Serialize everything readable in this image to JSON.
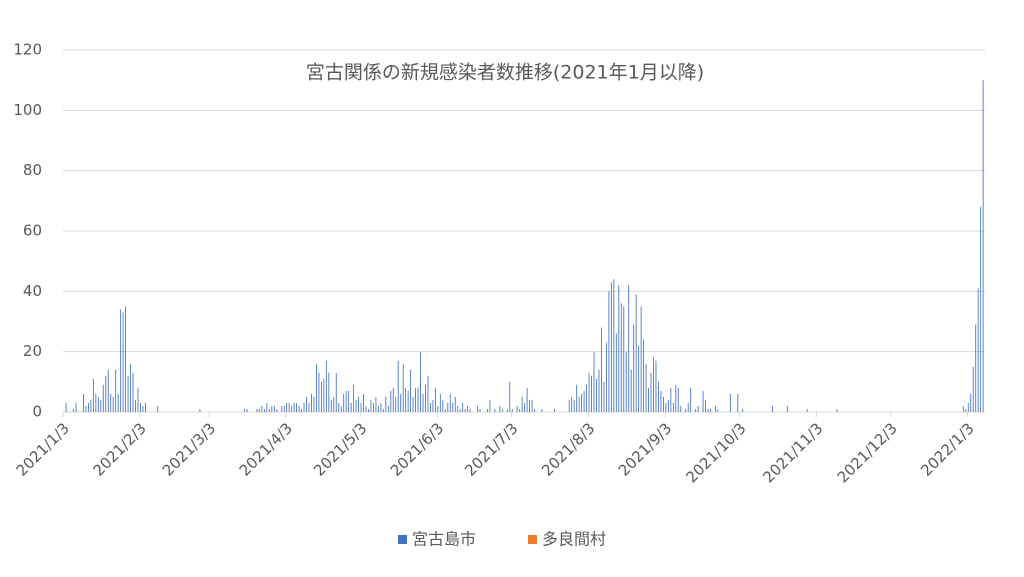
{
  "chart_data": {
    "type": "bar",
    "title": "宮古関係の新規感染者数推移(2021年1月以降)",
    "categories": [
      "2021/1/3",
      null,
      null,
      null,
      null,
      null,
      null,
      null,
      null,
      null,
      null,
      null,
      null,
      null,
      null,
      null,
      null,
      null,
      null,
      null,
      null,
      null,
      null,
      null,
      null,
      null,
      null,
      null,
      null,
      null,
      null,
      "2021/2/3",
      null,
      null,
      null,
      null,
      null,
      null,
      null,
      null,
      null,
      null,
      null,
      null,
      null,
      null,
      null,
      null,
      null,
      null,
      null,
      null,
      null,
      null,
      null,
      null,
      null,
      null,
      null,
      "2021/3/3",
      null,
      null,
      null,
      null,
      null,
      null,
      null,
      null,
      null,
      null,
      null,
      null,
      null,
      null,
      null,
      null,
      null,
      null,
      null,
      null,
      null,
      null,
      null,
      null,
      null,
      null,
      null,
      null,
      null,
      null,
      "2021/4/3",
      null,
      null,
      null,
      null,
      null,
      null,
      null,
      null,
      null,
      null,
      null,
      null,
      null,
      null,
      null,
      null,
      null,
      null,
      null,
      null,
      null,
      null,
      null,
      null,
      null,
      null,
      null,
      null,
      null,
      "2021/5/3",
      null,
      null,
      null,
      null,
      null,
      null,
      null,
      null,
      null,
      null,
      null,
      null,
      null,
      null,
      null,
      null,
      null,
      null,
      null,
      null,
      null,
      null,
      null,
      null,
      null,
      null,
      null,
      null,
      null,
      null,
      "2021/6/3",
      null,
      null,
      null,
      null,
      null,
      null,
      null,
      null,
      null,
      null,
      null,
      null,
      null,
      null,
      null,
      null,
      null,
      null,
      null,
      null,
      null,
      null,
      null,
      null,
      null,
      null,
      null,
      null,
      null,
      "2021/7/3",
      null,
      null,
      null,
      null,
      null,
      null,
      null,
      null,
      null,
      null,
      null,
      null,
      null,
      null,
      null,
      null,
      null,
      null,
      null,
      null,
      null,
      null,
      null,
      null,
      null,
      null,
      null,
      null,
      null,
      null,
      "2021/8/3",
      null,
      null,
      null,
      null,
      null,
      null,
      null,
      null,
      null,
      null,
      null,
      null,
      null,
      null,
      null,
      null,
      null,
      null,
      null,
      null,
      null,
      null,
      null,
      null,
      null,
      null,
      null,
      null,
      null,
      null,
      "2021/9/3",
      null,
      null,
      null,
      null,
      null,
      null,
      null,
      null,
      null,
      null,
      null,
      null,
      null,
      null,
      null,
      null,
      null,
      null,
      null,
      null,
      null,
      null,
      null,
      null,
      null,
      null,
      null,
      null,
      null,
      "2021/10/3",
      null,
      null,
      null,
      null,
      null,
      null,
      null,
      null,
      null,
      null,
      null,
      null,
      null,
      null,
      null,
      null,
      null,
      null,
      null,
      null,
      null,
      null,
      null,
      null,
      null,
      null,
      null,
      null,
      null,
      null,
      "2021/11/3",
      null,
      null,
      null,
      null,
      null,
      null,
      null,
      null,
      null,
      null,
      null,
      null,
      null,
      null,
      null,
      null,
      null,
      null,
      null,
      null,
      null,
      null,
      null,
      null,
      null,
      null,
      null,
      null,
      null,
      "2021/12/3",
      null,
      null,
      null,
      null,
      null,
      null,
      null,
      null,
      null,
      null,
      null,
      null,
      null,
      null,
      null,
      null,
      null,
      null,
      null,
      null,
      null,
      null,
      null,
      null,
      null,
      null,
      null,
      null,
      null,
      null,
      "2022/1/3",
      null,
      null,
      null,
      null,
      null,
      null
    ],
    "series": [
      {
        "name": "宮古島市",
        "color": "#4472c4",
        "values": [
          0,
          3,
          0,
          0,
          1,
          3,
          0,
          0,
          6,
          2,
          3,
          4,
          11,
          6,
          5,
          4,
          9,
          12,
          14,
          6,
          5,
          14,
          6,
          34,
          33,
          35,
          12,
          16,
          13,
          4,
          8,
          3,
          2,
          3,
          0,
          0,
          0,
          0,
          2,
          0,
          0,
          0,
          0,
          0,
          0,
          0,
          0,
          0,
          0,
          0,
          0,
          0,
          0,
          0,
          0,
          1,
          0,
          0,
          0,
          0,
          0,
          0,
          0,
          0,
          0,
          0,
          0,
          0,
          0,
          0,
          0,
          0,
          0,
          1,
          1,
          0,
          0,
          0,
          1,
          1,
          2,
          1,
          3,
          1,
          2,
          2,
          1,
          0,
          2,
          2,
          3,
          3,
          2,
          3,
          3,
          2,
          1,
          3,
          5,
          3,
          6,
          5,
          16,
          13,
          10,
          11,
          17,
          13,
          4,
          5,
          13,
          3,
          2,
          6,
          7,
          7,
          3,
          9,
          4,
          5,
          3,
          6,
          2,
          1,
          4,
          3,
          5,
          2,
          3,
          1,
          5,
          2,
          7,
          8,
          5,
          17,
          6,
          16,
          8,
          7,
          14,
          5,
          8,
          8,
          20,
          6,
          9,
          12,
          3,
          4,
          8,
          2,
          6,
          4,
          1,
          3,
          6,
          3,
          5,
          2,
          1,
          3,
          1,
          2,
          1,
          0,
          0,
          2,
          1,
          0,
          0,
          1,
          4,
          0,
          1,
          0,
          2,
          1,
          0,
          1,
          10,
          1,
          0,
          2,
          1,
          5,
          3,
          8,
          4,
          4,
          1,
          0,
          0,
          1,
          0,
          0,
          0,
          0,
          1,
          0,
          0,
          0,
          0,
          0,
          4,
          5,
          4,
          9,
          5,
          6,
          7,
          9,
          13,
          12,
          20,
          11,
          14,
          28,
          10,
          23,
          40,
          43,
          44,
          26,
          42,
          36,
          35,
          20,
          42,
          14,
          29,
          39,
          22,
          35,
          24,
          16,
          8,
          13,
          18,
          17,
          10,
          7,
          5,
          3,
          4,
          8,
          3,
          9,
          8,
          2,
          0,
          1,
          3,
          8,
          0,
          1,
          2,
          0,
          7,
          4,
          1,
          1,
          0,
          2,
          1,
          0,
          0,
          0,
          0,
          6,
          0,
          0,
          6,
          0,
          1,
          0,
          0,
          0,
          0,
          0,
          0,
          0,
          0,
          0,
          0,
          0,
          2,
          0,
          0,
          0,
          0,
          0,
          2,
          0,
          0,
          0,
          0,
          0,
          0,
          0,
          1,
          0,
          0,
          0,
          0,
          0,
          0,
          0,
          0,
          0,
          0,
          0,
          1,
          0,
          0,
          0,
          0,
          0,
          0,
          0,
          0,
          0,
          0,
          0,
          0,
          0,
          0,
          0,
          0,
          0,
          0,
          0,
          0,
          0,
          0,
          0,
          0,
          0,
          0,
          0,
          0,
          0,
          0,
          0,
          0,
          0,
          0,
          0,
          0,
          0,
          0,
          0,
          0,
          0,
          0,
          0,
          0,
          0,
          0,
          0,
          0,
          0,
          0,
          2,
          1,
          3,
          6,
          15,
          29,
          41,
          68,
          110
        ]
      },
      {
        "name": "多良間村",
        "color": "#ed7d31",
        "values": [
          0,
          0,
          0,
          0,
          0,
          0,
          0,
          0,
          0,
          0,
          0,
          0,
          0,
          0,
          0,
          0,
          0,
          0,
          0,
          0,
          0,
          0,
          0,
          0,
          0,
          0,
          0,
          0,
          0,
          0,
          0,
          0,
          0,
          0,
          0,
          0,
          0,
          0,
          0,
          0,
          0,
          0,
          0,
          0,
          0,
          0,
          0,
          0,
          0,
          0,
          0,
          0,
          0,
          0,
          0,
          0,
          0,
          0,
          0,
          0,
          0,
          0,
          0,
          0,
          0,
          0,
          0,
          0,
          0,
          0,
          0,
          0,
          0,
          0,
          0,
          0,
          0,
          0,
          0,
          0,
          0,
          0,
          0,
          0,
          0,
          0,
          0,
          0,
          0,
          0,
          0,
          0,
          0,
          0,
          0,
          0,
          0,
          0,
          0,
          0,
          0,
          0,
          0,
          0,
          0,
          0,
          0,
          0,
          0,
          0,
          0,
          0,
          0,
          0,
          0,
          0,
          0,
          0,
          0,
          0,
          0,
          0,
          0,
          0,
          0,
          0,
          0,
          0,
          0,
          0,
          0,
          0,
          0,
          0,
          0,
          0,
          0,
          0,
          0,
          0,
          0,
          0,
          0,
          0,
          0,
          0,
          0,
          0,
          0,
          0,
          0,
          0,
          0,
          0,
          0,
          0,
          0,
          0,
          0,
          0,
          0,
          0,
          0,
          0,
          0,
          0,
          0,
          0,
          0,
          0,
          0,
          0,
          0,
          0,
          0,
          0,
          0,
          0,
          0,
          0,
          0,
          0,
          0,
          0,
          0,
          0,
          0,
          0,
          0,
          0,
          0,
          0,
          0,
          0,
          0,
          0,
          0,
          0,
          0,
          0,
          0,
          0,
          0,
          0,
          0,
          0,
          0,
          0,
          0,
          0,
          0,
          0,
          0,
          0,
          0,
          0,
          0,
          0,
          0,
          0,
          0,
          0,
          0,
          0,
          0,
          0,
          0,
          0,
          0,
          0,
          0,
          0,
          0,
          0,
          0,
          0,
          0,
          0,
          0,
          0,
          0,
          0,
          0,
          0,
          0,
          0,
          0,
          0,
          0,
          0,
          0,
          0,
          0,
          0,
          0,
          0,
          0,
          0,
          0,
          0,
          0,
          0,
          0,
          0,
          0,
          0,
          0,
          0,
          0,
          0,
          0,
          0,
          0,
          0,
          0,
          0,
          0,
          0,
          0,
          0,
          0,
          0,
          0,
          0,
          0,
          0,
          0,
          0,
          0,
          0,
          0,
          0,
          0,
          0,
          0,
          0,
          0,
          0,
          0,
          0,
          0,
          0,
          0,
          0,
          0,
          0,
          0,
          0,
          0,
          0,
          0,
          0,
          0,
          0,
          0,
          0,
          0,
          0,
          0,
          0,
          0,
          0,
          0,
          0,
          0,
          0,
          0,
          0,
          0,
          0,
          0,
          0,
          0,
          0,
          0,
          0,
          0,
          0,
          0,
          0,
          0,
          0,
          0,
          0,
          0,
          0,
          0,
          0,
          0,
          0,
          0,
          0,
          0,
          0,
          0,
          0,
          0,
          0,
          0,
          0,
          0,
          0,
          0,
          0,
          0,
          0,
          0,
          0,
          0,
          0,
          0,
          0
        ]
      }
    ],
    "ylim": [
      0,
      120
    ],
    "yticks": [
      0,
      20,
      40,
      60,
      80,
      100,
      120
    ],
    "grid": true
  }
}
